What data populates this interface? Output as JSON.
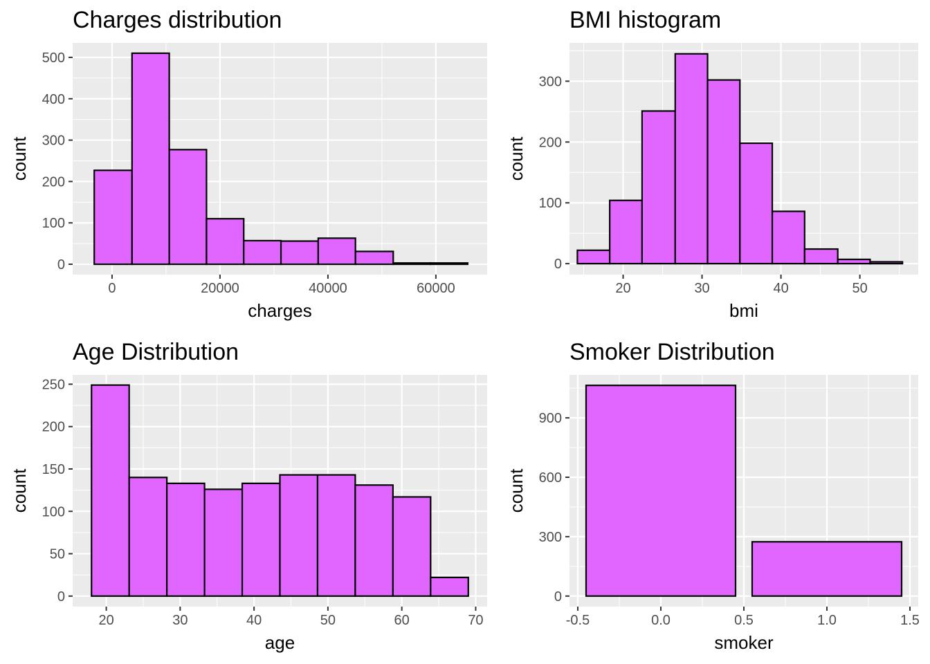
{
  "figure": {
    "background": "#ffffff",
    "panel_background": "#ebebeb",
    "grid_color": "#ffffff",
    "bar_fill": "#e066ff",
    "bar_stroke": "#000000"
  },
  "chart_data": [
    {
      "type": "bar",
      "title": "Charges distribution",
      "xlabel": "charges",
      "ylabel": "count",
      "xlim": [
        -7300,
        69500
      ],
      "ylim": [
        -25,
        535
      ],
      "xticks": [
        0,
        20000,
        40000,
        60000
      ],
      "xtick_labels": [
        "0",
        "20000",
        "40000",
        "60000"
      ],
      "yticks": [
        0,
        100,
        200,
        300,
        400,
        500
      ],
      "ytick_labels": [
        "0",
        "100",
        "200",
        "300",
        "400",
        "500"
      ],
      "bins": [
        {
          "x0": -3300,
          "x1": 3700,
          "count": 227
        },
        {
          "x0": 3700,
          "x1": 10600,
          "count": 510
        },
        {
          "x0": 10600,
          "x1": 17500,
          "count": 277
        },
        {
          "x0": 17500,
          "x1": 24400,
          "count": 110
        },
        {
          "x0": 24400,
          "x1": 31300,
          "count": 57
        },
        {
          "x0": 31300,
          "x1": 38200,
          "count": 56
        },
        {
          "x0": 38200,
          "x1": 45100,
          "count": 63
        },
        {
          "x0": 45100,
          "x1": 52100,
          "count": 31
        },
        {
          "x0": 52100,
          "x1": 59000,
          "count": 3
        },
        {
          "x0": 59000,
          "x1": 65900,
          "count": 3
        }
      ],
      "grid": true
    },
    {
      "type": "bar",
      "title": "BMI histogram",
      "xlabel": "bmi",
      "ylabel": "count",
      "xlim": [
        13.2,
        57.4
      ],
      "ylim": [
        -18,
        363
      ],
      "xticks": [
        20,
        30,
        40,
        50
      ],
      "xtick_labels": [
        "20",
        "30",
        "40",
        "50"
      ],
      "yticks": [
        0,
        100,
        200,
        300
      ],
      "ytick_labels": [
        "0",
        "100",
        "200",
        "300"
      ],
      "bins": [
        {
          "x0": 14.2,
          "x1": 18.3,
          "count": 22
        },
        {
          "x0": 18.3,
          "x1": 22.4,
          "count": 104
        },
        {
          "x0": 22.4,
          "x1": 26.6,
          "count": 251
        },
        {
          "x0": 26.6,
          "x1": 30.7,
          "count": 345
        },
        {
          "x0": 30.7,
          "x1": 34.8,
          "count": 302
        },
        {
          "x0": 34.8,
          "x1": 38.9,
          "count": 198
        },
        {
          "x0": 38.9,
          "x1": 43.0,
          "count": 86
        },
        {
          "x0": 43.0,
          "x1": 47.2,
          "count": 24
        },
        {
          "x0": 47.2,
          "x1": 51.3,
          "count": 7
        },
        {
          "x0": 51.3,
          "x1": 55.4,
          "count": 3
        }
      ],
      "grid": true
    },
    {
      "type": "bar",
      "title": "Age Distribution",
      "xlabel": "age",
      "ylabel": "count",
      "xlim": [
        15.45,
        71.55
      ],
      "ylim": [
        -12.4,
        261
      ],
      "xticks": [
        20,
        30,
        40,
        50,
        60,
        70
      ],
      "xtick_labels": [
        "20",
        "30",
        "40",
        "50",
        "60",
        "70"
      ],
      "yticks": [
        0,
        50,
        100,
        150,
        200,
        250
      ],
      "ytick_labels": [
        "0",
        "50",
        "100",
        "150",
        "200",
        "250"
      ],
      "bins": [
        {
          "x0": 18.0,
          "x1": 23.1,
          "count": 249
        },
        {
          "x0": 23.1,
          "x1": 28.2,
          "count": 140
        },
        {
          "x0": 28.2,
          "x1": 33.3,
          "count": 133
        },
        {
          "x0": 33.3,
          "x1": 38.4,
          "count": 126
        },
        {
          "x0": 38.4,
          "x1": 43.5,
          "count": 133
        },
        {
          "x0": 43.5,
          "x1": 48.6,
          "count": 143
        },
        {
          "x0": 48.6,
          "x1": 53.7,
          "count": 143
        },
        {
          "x0": 53.7,
          "x1": 58.8,
          "count": 131
        },
        {
          "x0": 58.8,
          "x1": 63.9,
          "count": 117
        },
        {
          "x0": 63.9,
          "x1": 69.0,
          "count": 22
        }
      ],
      "grid": true
    },
    {
      "type": "bar",
      "title": "Smoker Distribution",
      "xlabel": "smoker",
      "ylabel": "count",
      "xlim": [
        -0.55,
        1.55
      ],
      "ylim": [
        -53.2,
        1117
      ],
      "xticks": [
        -0.5,
        0.0,
        0.5,
        1.0,
        1.5
      ],
      "xtick_labels": [
        "-0.5",
        "0.0",
        "0.5",
        "1.0",
        "1.5"
      ],
      "yticks": [
        0,
        300,
        600,
        900
      ],
      "ytick_labels": [
        "0",
        "300",
        "600",
        "900"
      ],
      "bins": [
        {
          "x0": -0.45,
          "x1": 0.45,
          "count": 1064
        },
        {
          "x0": 0.55,
          "x1": 1.45,
          "count": 274
        }
      ],
      "grid": true
    }
  ]
}
